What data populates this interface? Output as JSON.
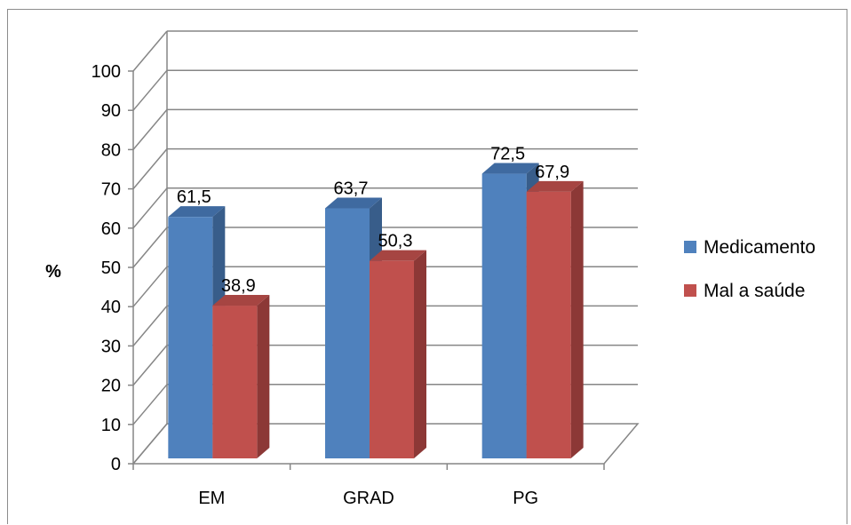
{
  "chart_data": {
    "type": "bar",
    "categories": [
      "EM",
      "GRAD",
      "PG"
    ],
    "series": [
      {
        "name": "Medicamento",
        "values": [
          61.5,
          63.7,
          72.5
        ],
        "labels": [
          "61,5",
          "63,7",
          "72,5"
        ]
      },
      {
        "name": "Mal a saúde",
        "values": [
          38.9,
          50.3,
          67.9
        ],
        "labels": [
          "38,9",
          "50,3",
          "67,9"
        ]
      }
    ],
    "title": "",
    "xlabel": "",
    "ylabel": "%",
    "ylim": [
      0,
      100
    ],
    "yticks": [
      "0",
      "10",
      "20",
      "30",
      "40",
      "50",
      "60",
      "70",
      "80",
      "90",
      "100"
    ],
    "grid": true,
    "legend_position": "right",
    "colors": {
      "series_0": {
        "front": "#4f81bd",
        "side": "#385d8a",
        "top": "#3f6aa0"
      },
      "series_1": {
        "front": "#c0504d",
        "side": "#8c3836",
        "top": "#a64542"
      },
      "grid": "#868686",
      "axis": "#868686"
    }
  }
}
